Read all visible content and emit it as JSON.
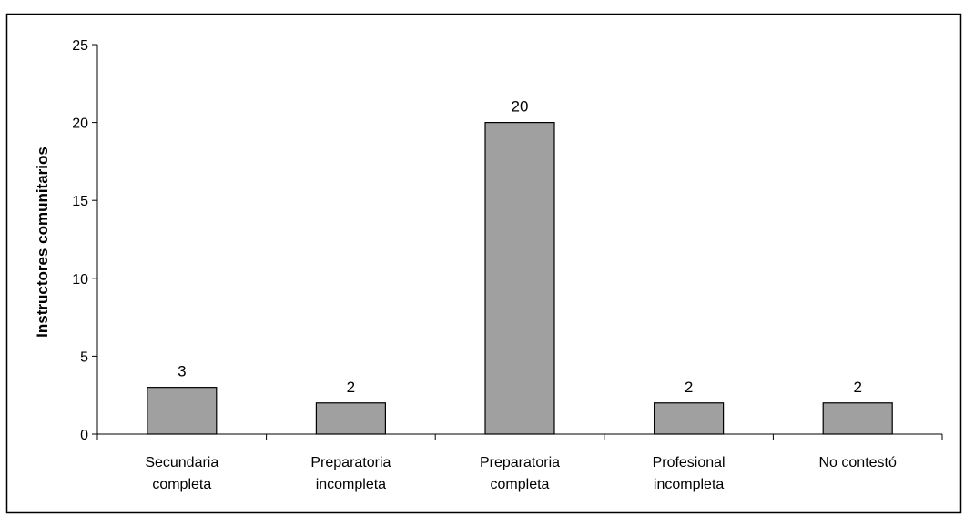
{
  "chart_data": {
    "type": "bar",
    "categories": [
      [
        "Secundaria",
        "completa"
      ],
      [
        "Preparatoria",
        "incompleta"
      ],
      [
        "Preparatoria",
        "completa"
      ],
      [
        "Profesional",
        "incompleta"
      ],
      [
        "No contestó"
      ]
    ],
    "values": [
      3,
      2,
      20,
      2,
      2
    ],
    "data_labels": [
      "3",
      "2",
      "20",
      "2",
      "2"
    ],
    "title": "",
    "xlabel": "",
    "ylabel": "Instructores comunitarios",
    "ylim": [
      0,
      25
    ],
    "yticks": [
      0,
      5,
      10,
      15,
      20,
      25
    ],
    "grid": false,
    "legend": "none",
    "bar_color": "#a0a0a0",
    "bar_edge_color": "#000000"
  }
}
